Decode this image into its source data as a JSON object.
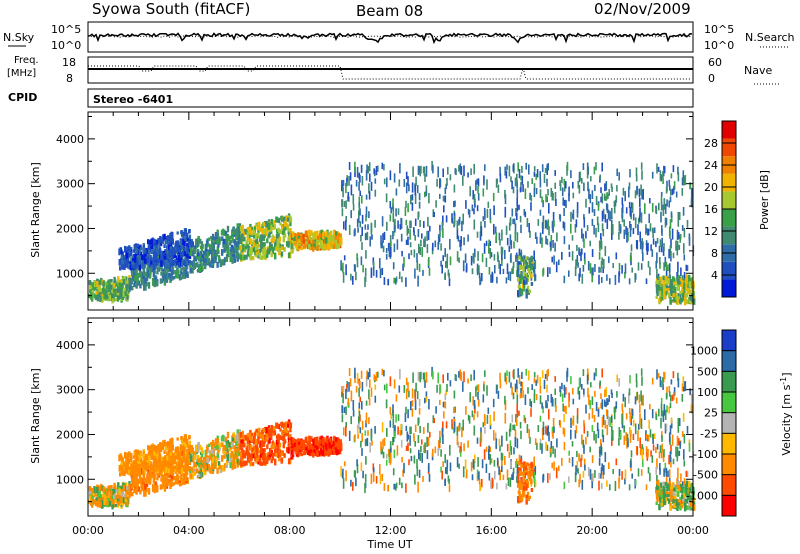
{
  "header": {
    "station": "Syowa South (fitACF)",
    "beam": "Beam 08",
    "date": "02/Nov/2009"
  },
  "strips": {
    "nsky_label": "N.Sky",
    "nsearch_label": "N.Search",
    "freq_label_1": "Freq.",
    "freq_label_2": "[MHz]",
    "nave_label": "Nave",
    "cpid_label": "CPID",
    "cpid_value": "Stereo  -6401",
    "noise_ticks": [
      "10^5",
      "10^0"
    ],
    "freq_ticks": [
      "18",
      "8"
    ],
    "nave_ticks": [
      "60",
      "0"
    ]
  },
  "colors": {
    "power": [
      "#0018d8",
      "#2050c0",
      "#2f6da8",
      "#3f8a70",
      "#3aa048",
      "#a8c830",
      "#f0b400",
      "#f08000",
      "#f04800",
      "#e00000"
    ],
    "velocity": [
      "#ff0000",
      "#ff4a00",
      "#ff8a00",
      "#ffb800",
      "#b4b4b4",
      "#48c840",
      "#3a9a50",
      "#2c6aa8",
      "#1a3ec8"
    ]
  },
  "chart_data": [
    {
      "type": "heatmap",
      "panel": "power",
      "title": "Syowa South (fitACF)   Beam 08   02/Nov/2009",
      "xlabel": "Time UT",
      "ylabel": "Slant Range [km]",
      "colorbar_label": "Power [dB]",
      "xlim": [
        0,
        24
      ],
      "ylim": [
        180,
        4600
      ],
      "xticks": [
        "00:00",
        "04:00",
        "08:00",
        "12:00",
        "16:00",
        "20:00",
        "00:00"
      ],
      "xtick_values": [
        0,
        4,
        8,
        12,
        16,
        20,
        24
      ],
      "yticks": [
        1000,
        2000,
        3000,
        4000
      ],
      "colorbar_ticks": [
        "4",
        "8",
        "12",
        "16",
        "20",
        "24",
        "28"
      ],
      "colorbar_range": [
        0,
        32
      ],
      "regions": [
        {
          "t": [
            0.0,
            1.6
          ],
          "r0": [
            400,
            400
          ],
          "r1": [
            800,
            900
          ],
          "v": [
            10,
            20
          ]
        },
        {
          "t": [
            1.6,
            4.0
          ],
          "r0": [
            600,
            900
          ],
          "r1": [
            1300,
            1700
          ],
          "v": [
            6,
            14
          ]
        },
        {
          "t": [
            1.2,
            4.0
          ],
          "r0": [
            1100,
            1200
          ],
          "r1": [
            1500,
            2000
          ],
          "v": [
            2,
            8
          ]
        },
        {
          "t": [
            4.0,
            6.0
          ],
          "r0": [
            1000,
            1300
          ],
          "r1": [
            1700,
            2100
          ],
          "v": [
            6,
            16
          ]
        },
        {
          "t": [
            6.0,
            8.0
          ],
          "r0": [
            1300,
            1400
          ],
          "r1": [
            2000,
            2300
          ],
          "v": [
            10,
            22
          ]
        },
        {
          "t": [
            8.0,
            10.0
          ],
          "r0": [
            1500,
            1600
          ],
          "r1": [
            1900,
            1900
          ],
          "v": [
            14,
            26
          ]
        },
        {
          "t": [
            10.0,
            24.0
          ],
          "r0": [
            800,
            800
          ],
          "r1": [
            3400,
            3400
          ],
          "v": [
            4,
            14
          ]
        },
        {
          "t": [
            17.0,
            17.6
          ],
          "r0": [
            500,
            500
          ],
          "r1": [
            1400,
            1400
          ],
          "v": [
            6,
            20
          ]
        },
        {
          "t": [
            22.5,
            24.0
          ],
          "r0": [
            350,
            350
          ],
          "r1": [
            900,
            900
          ],
          "v": [
            10,
            22
          ]
        }
      ]
    },
    {
      "type": "heatmap",
      "panel": "velocity",
      "xlabel": "Time UT",
      "ylabel": "Slant Range [km]",
      "colorbar_label": "Velocity [m s^-1]",
      "xlim": [
        0,
        24
      ],
      "ylim": [
        180,
        4600
      ],
      "xticks": [
        "00:00",
        "04:00",
        "08:00",
        "12:00",
        "16:00",
        "20:00",
        "00:00"
      ],
      "xtick_values": [
        0,
        4,
        8,
        12,
        16,
        20,
        24
      ],
      "yticks": [
        1000,
        2000,
        3000,
        4000
      ],
      "colorbar_ticks": [
        "1000",
        "500",
        "100",
        "25",
        "-25",
        "-100",
        "-500",
        "-1000"
      ],
      "regions": [
        {
          "t": [
            0.0,
            1.6
          ],
          "r0": [
            400,
            400
          ],
          "r1": [
            800,
            900
          ],
          "v": [
            -300,
            200
          ]
        },
        {
          "t": [
            1.6,
            4.0
          ],
          "r0": [
            600,
            900
          ],
          "r1": [
            1300,
            1700
          ],
          "v": [
            -600,
            -100
          ]
        },
        {
          "t": [
            1.2,
            4.0
          ],
          "r0": [
            1100,
            1200
          ],
          "r1": [
            1500,
            2000
          ],
          "v": [
            -400,
            -50
          ]
        },
        {
          "t": [
            4.0,
            6.0
          ],
          "r0": [
            1000,
            1300
          ],
          "r1": [
            1700,
            2100
          ],
          "v": [
            -300,
            150
          ]
        },
        {
          "t": [
            6.0,
            8.0
          ],
          "r0": [
            1300,
            1400
          ],
          "r1": [
            2000,
            2300
          ],
          "v": [
            -1100,
            -300
          ]
        },
        {
          "t": [
            8.0,
            10.0
          ],
          "r0": [
            1500,
            1600
          ],
          "r1": [
            1900,
            1900
          ],
          "v": [
            -1200,
            -600
          ]
        },
        {
          "t": [
            10.0,
            24.0
          ],
          "r0": [
            800,
            800
          ],
          "r1": [
            3400,
            3400
          ],
          "v": [
            -600,
            900
          ]
        },
        {
          "t": [
            17.0,
            17.6
          ],
          "r0": [
            500,
            500
          ],
          "r1": [
            1400,
            1400
          ],
          "v": [
            -700,
            -100
          ]
        },
        {
          "t": [
            22.5,
            24.0
          ],
          "r0": [
            350,
            350
          ],
          "r1": [
            900,
            900
          ],
          "v": [
            -200,
            300
          ]
        }
      ]
    }
  ],
  "axes": {
    "xlabel": "Time UT",
    "ylabel": "Slant Range [km]",
    "xticks": [
      "00:00",
      "04:00",
      "08:00",
      "12:00",
      "16:00",
      "20:00",
      "00:00"
    ],
    "yticks": [
      "1000",
      "2000",
      "3000",
      "4000"
    ],
    "power_label": "Power [dB]",
    "velocity_label": "Velocity [m s",
    "velocity_label_sup": "-1",
    "velocity_label_end": "]"
  }
}
